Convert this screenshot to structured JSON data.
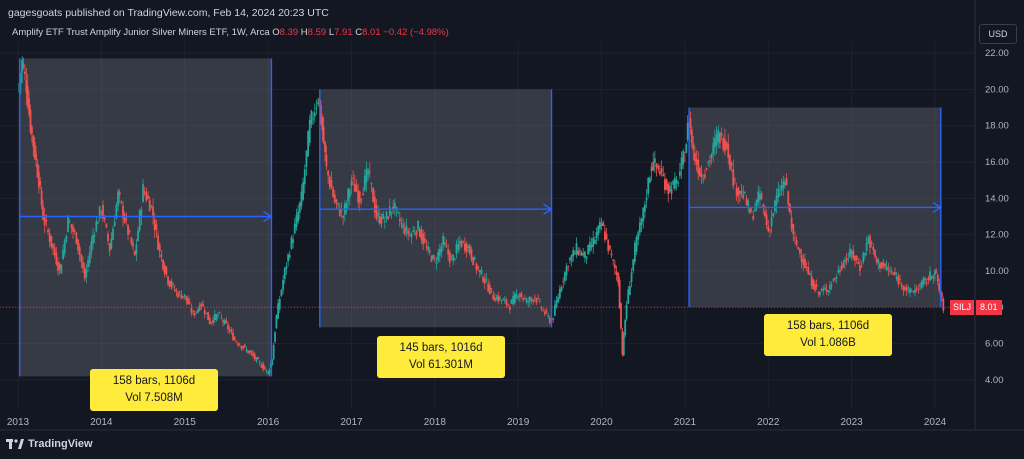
{
  "header": {
    "published": "gagesgoats published on TradingView.com, Feb 14, 2024 20:23 UTC"
  },
  "legend": {
    "name": "Amplify ETF Trust Amplify Junior Silver Miners ETF, 1W, Arca",
    "o_label": "O",
    "o_value": "8.39",
    "h_label": "H",
    "h_value": "8.59",
    "l_label": "L",
    "l_value": "7.91",
    "c_label": "C",
    "c_value": "8.01",
    "change": "−0.42 (−4.98%)"
  },
  "currency_button": "USD",
  "price_tag": {
    "symbol": "SILJ",
    "value": "8.01"
  },
  "callouts": [
    {
      "line1": "158 bars, 1106d",
      "line2": "Vol 7.508M"
    },
    {
      "line1": "145 bars, 1016d",
      "line2": "Vol 61.301M"
    },
    {
      "line1": "158 bars, 1106d",
      "line2": "Vol 1.086B"
    }
  ],
  "brand": "TradingView",
  "colors": {
    "up": "#26a69a",
    "down": "#ef5350",
    "range_line": "#2962ff",
    "callout": "#ffeb3b",
    "last_price": "#f23645"
  },
  "chart_data": {
    "type": "line",
    "title": "Amplify ETF Trust Amplify Junior Silver Miners ETF, 1W, Arca",
    "x_ticks": [
      "2013",
      "2014",
      "2015",
      "2016",
      "2017",
      "2018",
      "2019",
      "2020",
      "2021",
      "2022",
      "2023",
      "2024"
    ],
    "y_ticks": [
      "4.00",
      "6.00",
      "8.00",
      "10.00",
      "12.00",
      "14.00",
      "16.00",
      "18.00",
      "20.00",
      "22.00"
    ],
    "ylim": [
      3,
      23
    ],
    "xlim": [
      2013.0,
      2024.4
    ],
    "grid": true,
    "series": [
      {
        "x": [
          2013.0,
          2013.05,
          2013.1,
          2013.15,
          2013.2,
          2013.25,
          2013.3,
          2013.4,
          2013.5,
          2013.6,
          2013.7,
          2013.8,
          2013.9,
          2014.0,
          2014.1,
          2014.2,
          2014.3,
          2014.4,
          2014.5,
          2014.6,
          2014.7,
          2014.8,
          2014.9,
          2015.0,
          2015.1,
          2015.2,
          2015.3,
          2015.4,
          2015.5,
          2015.6,
          2015.7,
          2015.8,
          2015.9,
          2016.0,
          2016.05,
          2016.1,
          2016.2,
          2016.3,
          2016.4,
          2016.5,
          2016.6,
          2016.65,
          2016.7,
          2016.8,
          2016.9,
          2017.0,
          2017.1,
          2017.2,
          2017.3,
          2017.4,
          2017.5,
          2017.6,
          2017.7,
          2017.8,
          2017.9,
          2018.0,
          2018.1,
          2018.2,
          2018.3,
          2018.4,
          2018.5,
          2018.6,
          2018.7,
          2018.8,
          2018.9,
          2019.0,
          2019.1,
          2019.2,
          2019.3,
          2019.4,
          2019.5,
          2019.6,
          2019.7,
          2019.8,
          2019.9,
          2020.0,
          2020.1,
          2020.2,
          2020.25,
          2020.3,
          2020.4,
          2020.5,
          2020.6,
          2020.7,
          2020.8,
          2020.9,
          2021.0,
          2021.05,
          2021.1,
          2021.2,
          2021.3,
          2021.4,
          2021.5,
          2021.6,
          2021.7,
          2021.8,
          2021.9,
          2022.0,
          2022.1,
          2022.2,
          2022.3,
          2022.4,
          2022.5,
          2022.6,
          2022.7,
          2022.8,
          2022.9,
          2023.0,
          2023.1,
          2023.2,
          2023.3,
          2023.4,
          2023.5,
          2023.6,
          2023.7,
          2023.8,
          2023.9,
          2024.0,
          2024.05,
          2024.1
        ],
        "y": [
          19.8,
          21.5,
          20.2,
          18.0,
          16.5,
          15.0,
          13.0,
          11.5,
          10.0,
          12.8,
          11.8,
          9.6,
          12.0,
          13.5,
          11.2,
          14.2,
          12.5,
          10.8,
          14.5,
          13.5,
          11.0,
          9.5,
          8.8,
          8.6,
          7.6,
          8.2,
          7.2,
          7.6,
          7.0,
          6.2,
          5.8,
          5.4,
          4.9,
          4.4,
          5.2,
          7.5,
          10.0,
          12.0,
          14.0,
          18.0,
          19.6,
          17.8,
          15.6,
          13.8,
          13.0,
          15.0,
          14.0,
          15.5,
          13.0,
          12.8,
          13.6,
          12.5,
          12.0,
          12.4,
          11.2,
          10.5,
          11.6,
          10.5,
          11.6,
          11.3,
          10.2,
          9.5,
          8.6,
          8.4,
          8.1,
          8.8,
          8.3,
          8.6,
          7.8,
          7.2,
          9.0,
          10.5,
          11.2,
          10.8,
          11.6,
          12.6,
          11.0,
          9.5,
          5.5,
          8.2,
          11.2,
          13.2,
          16.0,
          15.5,
          14.5,
          14.8,
          16.5,
          18.5,
          16.5,
          15.2,
          16.2,
          17.5,
          17.0,
          14.6,
          14.2,
          13.0,
          14.2,
          12.2,
          14.0,
          15.0,
          11.8,
          10.8,
          9.6,
          8.8,
          9.0,
          9.6,
          10.5,
          11.0,
          10.2,
          11.8,
          10.5,
          10.2,
          9.8,
          9.3,
          8.8,
          9.1,
          9.5,
          10.0,
          9.0,
          8.01
        ]
      }
    ],
    "ranges": [
      {
        "x_start": 2013.02,
        "x_end": 2016.04,
        "y_top": 21.7,
        "y_bottom": 4.2
      },
      {
        "x_start": 2016.62,
        "x_end": 2019.4,
        "y_top": 20.0,
        "y_bottom": 6.9
      },
      {
        "x_start": 2021.05,
        "x_end": 2024.07,
        "y_top": 19.0,
        "y_bottom": 8.01
      }
    ]
  }
}
